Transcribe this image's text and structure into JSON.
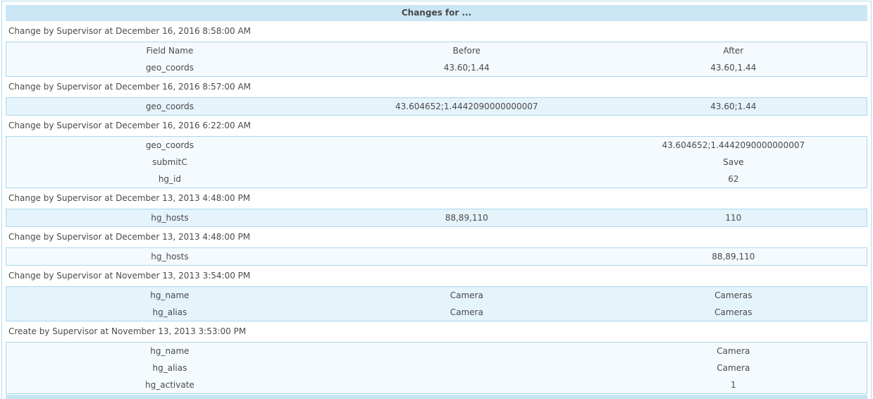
{
  "panel": {
    "title": "Changes for ...",
    "columns": [
      "Field Name",
      "Before",
      "After"
    ],
    "entries": [
      {
        "heading": "Change by Supervisor at December 16, 2016 8:58:00 AM",
        "show_header": true,
        "rows": [
          [
            "geo_coords",
            "43.60;1.44",
            "43.60,1.44"
          ]
        ]
      },
      {
        "heading": "Change by Supervisor at December 16, 2016 8:57:00 AM",
        "show_header": false,
        "rows": [
          [
            "geo_coords",
            "43.604652;1.4442090000000007",
            "43.60;1.44"
          ]
        ]
      },
      {
        "heading": "Change by Supervisor at December 16, 2016 6:22:00 AM",
        "show_header": false,
        "rows": [
          [
            "geo_coords",
            "",
            "43.604652;1.4442090000000007"
          ],
          [
            "submitC",
            "",
            "Save"
          ],
          [
            "hg_id",
            "",
            "62"
          ]
        ]
      },
      {
        "heading": "Change by Supervisor at December 13, 2013 4:48:00 PM",
        "show_header": false,
        "rows": [
          [
            "hg_hosts",
            "88,89,110",
            "110"
          ]
        ]
      },
      {
        "heading": "Change by Supervisor at December 13, 2013 4:48:00 PM",
        "show_header": false,
        "rows": [
          [
            "hg_hosts",
            "",
            "88,89,110"
          ]
        ]
      },
      {
        "heading": "Change by Supervisor at November 13, 2013 3:54:00 PM",
        "show_header": false,
        "rows": [
          [
            "hg_name",
            "Camera",
            "Cameras"
          ],
          [
            "hg_alias",
            "Camera",
            "Cameras"
          ]
        ]
      },
      {
        "heading": "Create by Supervisor at November 13, 2013 3:53:00 PM",
        "show_header": false,
        "rows": [
          [
            "hg_name",
            "",
            "Camera"
          ],
          [
            "hg_alias",
            "",
            "Camera"
          ],
          [
            "hg_activate",
            "",
            "1"
          ]
        ]
      }
    ],
    "colors": {
      "title_bar_bg": "#cbe7f5",
      "table_border": "#abd7ec",
      "table_bg_pale": "#f4fafd",
      "table_bg_blue": "#e5f3fa",
      "text": "#4a4a4a",
      "next_panel_strip": "#c6e5f4"
    }
  }
}
